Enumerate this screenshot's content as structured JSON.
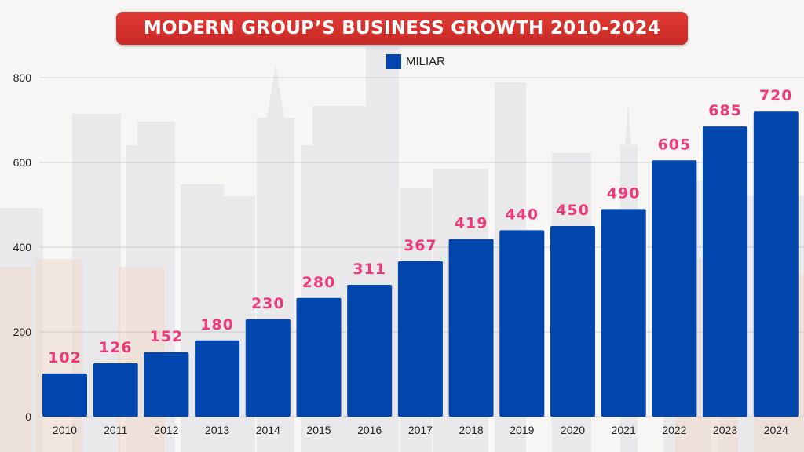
{
  "chart_data": {
    "type": "bar",
    "title": "MODERN GROUP’S BUSINESS GROWTH 2010-2024",
    "categories": [
      "2010",
      "2011",
      "2012",
      "2013",
      "2014",
      "2015",
      "2016",
      "2017",
      "2018",
      "2019",
      "2020",
      "2021",
      "2022",
      "2023",
      "2024"
    ],
    "series": [
      {
        "name": "MILIAR",
        "values": [
          102,
          126,
          152,
          180,
          230,
          280,
          311,
          367,
          419,
          440,
          450,
          490,
          605,
          685,
          720
        ]
      }
    ],
    "ylim": [
      0,
      800
    ],
    "yticks": [
      0,
      200,
      400,
      600,
      800
    ],
    "grid": true,
    "legend_position": "top-center",
    "data_labels": true
  },
  "colors": {
    "bar": "#0046ad",
    "data_label": "#ee3a7b",
    "title_banner": "#d4302b",
    "title_text": "#ffffff"
  }
}
